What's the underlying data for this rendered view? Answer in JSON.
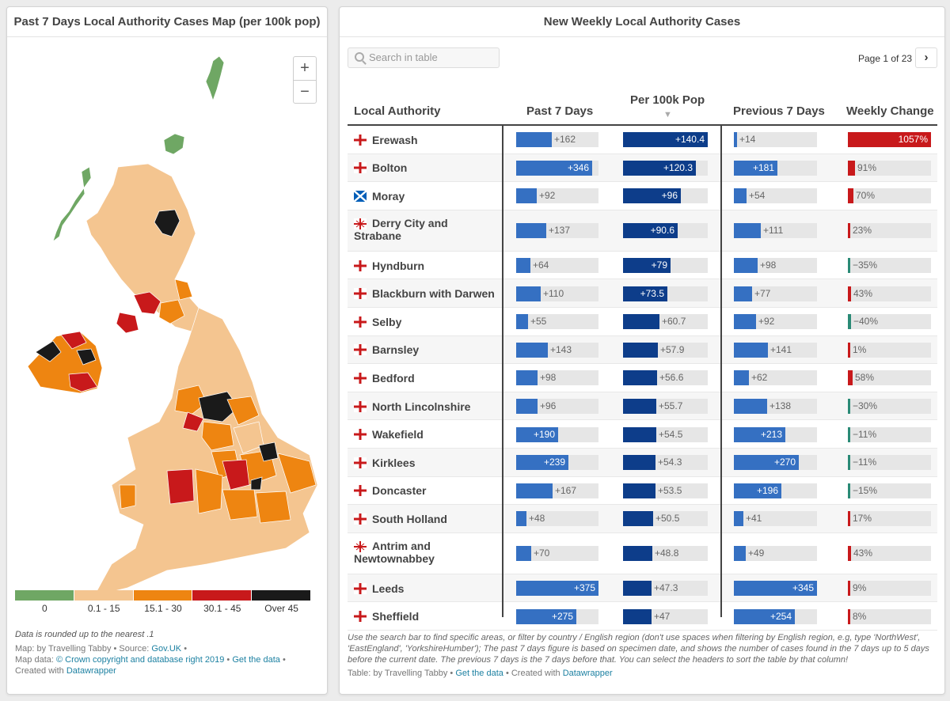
{
  "map_panel": {
    "title": "Past 7 Days Local Authority Cases Map (per 100k pop)",
    "zoom_in": "+",
    "zoom_out": "−",
    "legend": [
      {
        "label": "0",
        "color": "#6fa764"
      },
      {
        "label": "0.1 - 15",
        "color": "#f4c590"
      },
      {
        "label": "15.1 - 30",
        "color": "#ee8511"
      },
      {
        "label": "30.1 - 45",
        "color": "#c8191b"
      },
      {
        "label": "Over 45",
        "color": "#1a1a1a"
      }
    ],
    "note": "Data is rounded up to the nearest .1",
    "credit_map": "Map: by Travelling Tabby • Source:",
    "credit_map_link": "Gov.UK",
    "credit_map_end": "•",
    "credit_data": "Map data:",
    "credit_data_link": "© Crown copyright and database right 2019",
    "credit_data_sep": "•",
    "credit_getdata": "Get the data",
    "credit_data_end": "•",
    "credit_created": "Created with",
    "credit_dw": "Datawrapper"
  },
  "table_panel": {
    "title": "New Weekly Local Authority Cases",
    "search_placeholder": "Search in table",
    "page_info": "Page 1 of 23",
    "next_label": "›",
    "headers": {
      "la": "Local Authority",
      "past7": "Past 7 Days",
      "per100k": "Per 100k Pop",
      "sort_arrow": "▼",
      "prev7": "Previous 7 Days",
      "change": "Weekly Change"
    },
    "colors": {
      "blue": "#3570c2",
      "dark_blue": "#0d3d8a",
      "red": "#c8191b",
      "teal": "#2a8a76"
    },
    "rows": [
      {
        "name": "Erewash",
        "flag": "england",
        "past": 162,
        "past_label": "+162",
        "per": 140.4,
        "per_label": "+140.4",
        "prev": 14,
        "prev_label": "+14",
        "change": 1057,
        "change_label": "1057%"
      },
      {
        "name": "Bolton",
        "flag": "england",
        "past": 346,
        "past_label": "+346",
        "per": 120.3,
        "per_label": "+120.3",
        "prev": 181,
        "prev_label": "+181",
        "change": 91,
        "change_label": "91%"
      },
      {
        "name": "Moray",
        "flag": "scotland",
        "past": 92,
        "past_label": "+92",
        "per": 96,
        "per_label": "+96",
        "prev": 54,
        "prev_label": "+54",
        "change": 70,
        "change_label": "70%"
      },
      {
        "name": "Derry City and Strabane",
        "flag": "ni",
        "past": 137,
        "past_label": "+137",
        "per": 90.6,
        "per_label": "+90.6",
        "prev": 111,
        "prev_label": "+111",
        "change": 23,
        "change_label": "23%"
      },
      {
        "name": "Hyndburn",
        "flag": "england",
        "past": 64,
        "past_label": "+64",
        "per": 79,
        "per_label": "+79",
        "prev": 98,
        "prev_label": "+98",
        "change": -35,
        "change_label": "−35%"
      },
      {
        "name": "Blackburn with Darwen",
        "flag": "england",
        "past": 110,
        "past_label": "+110",
        "per": 73.5,
        "per_label": "+73.5",
        "prev": 77,
        "prev_label": "+77",
        "change": 43,
        "change_label": "43%"
      },
      {
        "name": "Selby",
        "flag": "england",
        "past": 55,
        "past_label": "+55",
        "per": 60.7,
        "per_label": "+60.7",
        "prev": 92,
        "prev_label": "+92",
        "change": -40,
        "change_label": "−40%"
      },
      {
        "name": "Barnsley",
        "flag": "england",
        "past": 143,
        "past_label": "+143",
        "per": 57.9,
        "per_label": "+57.9",
        "prev": 141,
        "prev_label": "+141",
        "change": 1,
        "change_label": "1%"
      },
      {
        "name": "Bedford",
        "flag": "england",
        "past": 98,
        "past_label": "+98",
        "per": 56.6,
        "per_label": "+56.6",
        "prev": 62,
        "prev_label": "+62",
        "change": 58,
        "change_label": "58%"
      },
      {
        "name": "North Lincolnshire",
        "flag": "england",
        "past": 96,
        "past_label": "+96",
        "per": 55.7,
        "per_label": "+55.7",
        "prev": 138,
        "prev_label": "+138",
        "change": -30,
        "change_label": "−30%"
      },
      {
        "name": "Wakefield",
        "flag": "england",
        "past": 190,
        "past_label": "+190",
        "per": 54.5,
        "per_label": "+54.5",
        "prev": 213,
        "prev_label": "+213",
        "change": -11,
        "change_label": "−11%"
      },
      {
        "name": "Kirklees",
        "flag": "england",
        "past": 239,
        "past_label": "+239",
        "per": 54.3,
        "per_label": "+54.3",
        "prev": 270,
        "prev_label": "+270",
        "change": -11,
        "change_label": "−11%"
      },
      {
        "name": "Doncaster",
        "flag": "england",
        "past": 167,
        "past_label": "+167",
        "per": 53.5,
        "per_label": "+53.5",
        "prev": 196,
        "prev_label": "+196",
        "change": -15,
        "change_label": "−15%"
      },
      {
        "name": "South Holland",
        "flag": "england",
        "past": 48,
        "past_label": "+48",
        "per": 50.5,
        "per_label": "+50.5",
        "prev": 41,
        "prev_label": "+41",
        "change": 17,
        "change_label": "17%"
      },
      {
        "name": "Antrim and Newtownabbey",
        "flag": "ni",
        "past": 70,
        "past_label": "+70",
        "per": 48.8,
        "per_label": "+48.8",
        "prev": 49,
        "prev_label": "+49",
        "change": 43,
        "change_label": "43%"
      },
      {
        "name": "Leeds",
        "flag": "england",
        "past": 375,
        "past_label": "+375",
        "per": 47.3,
        "per_label": "+47.3",
        "prev": 345,
        "prev_label": "+345",
        "change": 9,
        "change_label": "9%"
      },
      {
        "name": "Sheffield",
        "flag": "england",
        "past": 275,
        "past_label": "+275",
        "per": 47,
        "per_label": "+47",
        "prev": 254,
        "prev_label": "+254",
        "change": 8,
        "change_label": "8%"
      }
    ],
    "footnote": "Use the search bar to find specific areas, or filter by country / English region (don't use spaces when filtering by English region, e.g, type 'NorthWest', 'EastEngland', 'YorkshireHumber'); The past 7 days figure is based on specimen date, and shows the number of cases found in the 7 days up to 5 days before the current date. The previous 7 days is the 7 days before that. You can select the headers to sort the table by that column!",
    "credit": "Table: by Travelling Tabby •",
    "credit_getdata": "Get the data",
    "credit_sep": "• Created with",
    "credit_dw": "Datawrapper"
  }
}
